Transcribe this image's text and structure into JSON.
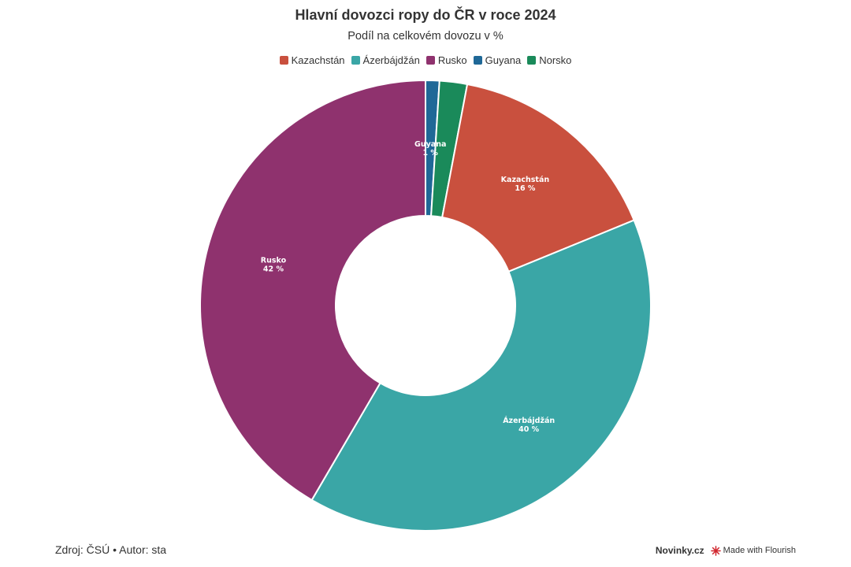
{
  "title": "Hlavní dovozci ropy do ČR v roce 2024",
  "subtitle": "Podíl na celkovém dovozu v %",
  "legend": [
    {
      "name": "Kazachstán",
      "color": "#c9503e"
    },
    {
      "name": "Ázerbájdžán",
      "color": "#3aa6a6"
    },
    {
      "name": "Rusko",
      "color": "#8f326e"
    },
    {
      "name": "Guyana",
      "color": "#1f6897"
    },
    {
      "name": "Norsko",
      "color": "#1a8a5a"
    }
  ],
  "chart_data": {
    "type": "pie",
    "title": "Hlavní dovozci ropy do ČR v roce 2024",
    "subtitle": "Podíl na celkovém dovozu v %",
    "donut": true,
    "slices": [
      {
        "name": "Guyana",
        "value": 1,
        "label_name": "Guyana",
        "label_value": "1 %",
        "color": "#1f6897"
      },
      {
        "name": "Norsko",
        "value": 2,
        "label_name": "",
        "label_value": "",
        "color": "#1a8a5a"
      },
      {
        "name": "Kazachstán",
        "value": 16,
        "label_name": "Kazachstán",
        "label_value": "16 %",
        "color": "#c9503e"
      },
      {
        "name": "Ázerbájdžán",
        "value": 40,
        "label_name": "Ázerbájdžán",
        "label_value": "40 %",
        "color": "#3aa6a6"
      },
      {
        "name": "Rusko",
        "value": 42,
        "label_name": "Rusko",
        "label_value": "42 %",
        "color": "#8f326e"
      }
    ],
    "legend_position": "top-center"
  },
  "footer": {
    "source": "Zdroj: ČSÚ • Autor: sta",
    "brand": "Novinky.cz",
    "made_with": "Made with Flourish"
  }
}
